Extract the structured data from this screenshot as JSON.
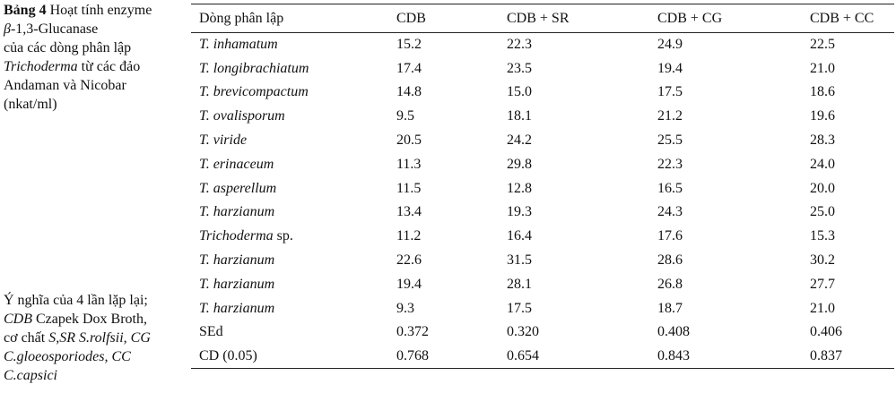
{
  "caption": {
    "label": "Bảng 4",
    "line1_rest": " Hoạt tính enzyme",
    "beta": "β",
    "line2_rest": "-1,3-Glucanase",
    "line3": "của các dòng phân lập",
    "genus": "Trichoderma",
    "line4_rest": " từ các đảo",
    "line5": "Andaman và Nicobar",
    "line6": "(nkat/ml)"
  },
  "footnote": {
    "line1": "Ý nghĩa của 4 lần lặp lại;",
    "abbr_cdb": "CDB",
    "cdb_text": " Czapek Dox Broth,",
    "substrate_text": "cơ chất ",
    "abbr_s_sr": "S,SR S.rolfsii,",
    "space": " ",
    "abbr_cg": "CG",
    "cg_text": "C.gloeosporiodes,",
    "abbr_cc": "CC",
    "cc_text": "C.capsici"
  },
  "table": {
    "headers": [
      "Dòng phân lập",
      "CDB",
      "CDB + SR",
      "CDB + CG",
      "CDB + CC"
    ],
    "rows": [
      {
        "genus": "T.",
        "species": "inhamatum",
        "values": [
          "15.2",
          "22.3",
          "24.9",
          "22.5"
        ]
      },
      {
        "genus": "T.",
        "species": "longibrachiatum",
        "values": [
          "17.4",
          "23.5",
          "19.4",
          "21.0"
        ]
      },
      {
        "genus": "T.",
        "species": "brevicompactum",
        "values": [
          "14.8",
          "15.0",
          "17.5",
          "18.6"
        ]
      },
      {
        "genus": "T.",
        "species": "ovalisporum",
        "values": [
          "9.5",
          "18.1",
          "21.2",
          "19.6"
        ]
      },
      {
        "genus": "T.",
        "species": "viride",
        "values": [
          "20.5",
          "24.2",
          "25.5",
          "28.3"
        ]
      },
      {
        "genus": "T.",
        "species": "erinaceum",
        "values": [
          "11.3",
          "29.8",
          "22.3",
          "24.0"
        ]
      },
      {
        "genus": "T.",
        "species": "asperellum",
        "values": [
          "11.5",
          "12.8",
          "16.5",
          "20.0"
        ]
      },
      {
        "genus": "T.",
        "species": "harzianum",
        "values": [
          "13.4",
          "19.3",
          "24.3",
          "25.0"
        ]
      },
      {
        "genus": "Trichoderma",
        "species": "sp.",
        "values": [
          "11.2",
          "16.4",
          "17.6",
          "15.3"
        ]
      },
      {
        "genus": "T.",
        "species": "harzianum",
        "values": [
          "22.6",
          "31.5",
          "28.6",
          "30.2"
        ]
      },
      {
        "genus": "T.",
        "species": "harzianum",
        "values": [
          "19.4",
          "28.1",
          "26.8",
          "27.7"
        ]
      },
      {
        "genus": "T.",
        "species": "harzianum",
        "values": [
          "9.3",
          "17.5",
          "18.7",
          "21.0"
        ]
      }
    ],
    "stats": [
      {
        "label": "SEd",
        "values": [
          "0.372",
          "0.320",
          "0.408",
          "0.406"
        ]
      },
      {
        "label": "CD (0.05)",
        "values": [
          "0.768",
          "0.654",
          "0.843",
          "0.837"
        ]
      }
    ]
  }
}
